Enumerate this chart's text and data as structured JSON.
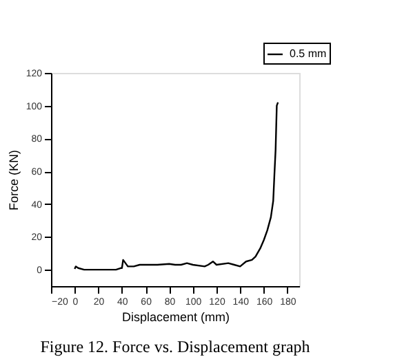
{
  "chart_data": {
    "type": "line",
    "title": "Figure 12. Force vs. Displacement graph",
    "xlabel": "Displacement (mm)",
    "ylabel": "Force (KN)",
    "xlim": [
      -20,
      190
    ],
    "xticks": [
      -20,
      0,
      20,
      40,
      60,
      80,
      100,
      120,
      140,
      160,
      180
    ],
    "ylim": [
      -10,
      120
    ],
    "yticks": [
      0,
      20,
      40,
      60,
      80,
      100,
      120
    ],
    "grid": false,
    "legend": "top right",
    "marker": "none",
    "line_style": "solid",
    "series": [
      {
        "name": "0.5 mm",
        "color": "#000000",
        "x": [
          0,
          1,
          3,
          8,
          20,
          35,
          39,
          40,
          41,
          43,
          45,
          50,
          55,
          70,
          80,
          85,
          90,
          95,
          100,
          110,
          113,
          117,
          120,
          130,
          135,
          140,
          145,
          150,
          153,
          157,
          160,
          163,
          166,
          168,
          169,
          170,
          171,
          172
        ],
        "values": [
          0.5,
          2,
          1,
          0,
          0,
          0,
          1,
          1,
          6,
          4,
          2,
          2,
          3,
          3,
          3.5,
          3,
          3,
          4,
          3,
          2,
          3,
          5,
          3,
          4,
          3,
          2,
          5,
          6,
          8,
          13,
          18,
          24,
          32,
          42,
          58,
          73,
          100,
          102
        ]
      }
    ]
  }
}
